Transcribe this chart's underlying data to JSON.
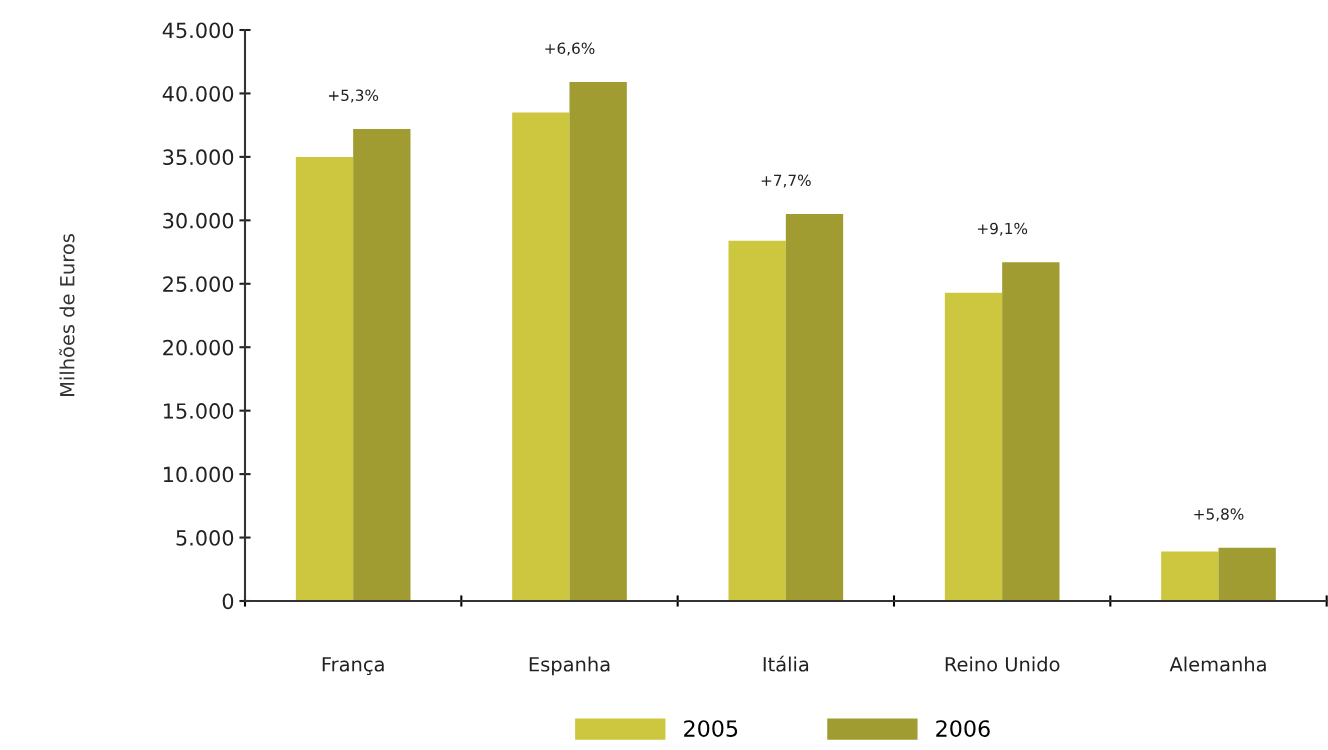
{
  "chart_data": {
    "type": "bar",
    "ylabel": "Milhões de Euros",
    "categories": [
      "França",
      "Espanha",
      "Itália",
      "Reino Unido",
      "Alemanha"
    ],
    "series": [
      {
        "name": "2005",
        "color": "#cdc63f",
        "values": [
          35000,
          38500,
          28400,
          24300,
          3900
        ]
      },
      {
        "name": "2006",
        "color": "#a09c31",
        "values": [
          37200,
          40900,
          30500,
          26700,
          4200
        ]
      }
    ],
    "ylim": [
      0,
      45000
    ],
    "yticks": [
      {
        "value": 0,
        "label": "0"
      },
      {
        "value": 5000,
        "label": "5.000"
      },
      {
        "value": 10000,
        "label": "10.000"
      },
      {
        "value": 15000,
        "label": "15.000"
      },
      {
        "value": 20000,
        "label": "20.000"
      },
      {
        "value": 25000,
        "label": "25.000"
      },
      {
        "value": 30000,
        "label": "30.000"
      },
      {
        "value": 35000,
        "label": "35.000"
      },
      {
        "value": 40000,
        "label": "40.000"
      },
      {
        "value": 45000,
        "label": "45.000"
      }
    ],
    "annotations": [
      {
        "text": "+5,3%",
        "x": "França",
        "y": 37200
      },
      {
        "text": "+6,6%",
        "x": "Espanha",
        "y": 40900
      },
      {
        "text": "+7,7%",
        "x": "Itália",
        "y": 30500
      },
      {
        "text": "+9,1%",
        "x": "Reino Unido",
        "y": 26700
      },
      {
        "text": "+5,8%",
        "x": "Alemanha",
        "y": 4200
      }
    ],
    "grid": false,
    "legend": "bottom"
  }
}
